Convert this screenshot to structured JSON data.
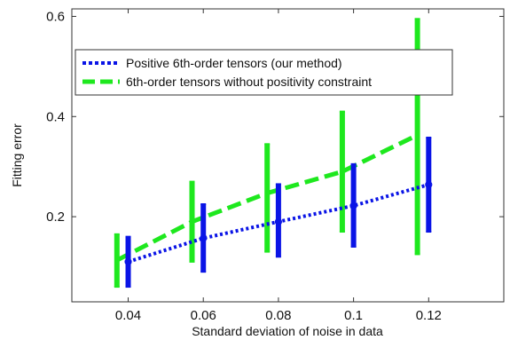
{
  "chart_data": {
    "type": "line",
    "xlabel": "Standard deviation of noise in data",
    "ylabel": "Fitting error",
    "xlim": [
      0.025,
      0.14
    ],
    "ylim": [
      0.03,
      0.615
    ],
    "x_ticks": [
      0.04,
      0.06,
      0.08,
      0.1,
      0.12
    ],
    "x_tick_labels": [
      "0.04",
      "0.06",
      "0.08",
      "0.1",
      "0.12"
    ],
    "y_ticks": [
      0.2,
      0.4,
      0.6
    ],
    "y_tick_labels": [
      "0.2",
      "0.4",
      "0.6"
    ],
    "legend_position": "top-left",
    "grid": false,
    "series": [
      {
        "name": "Positive 6th-order tensors (our method)",
        "color": "#0a14e6",
        "line_style": "dotted",
        "marker": "circle",
        "x": [
          0.04,
          0.06,
          0.08,
          0.1,
          0.12
        ],
        "y": [
          0.11,
          0.157,
          0.19,
          0.222,
          0.264
        ],
        "err_low": [
          0.06,
          0.09,
          0.12,
          0.14,
          0.17
        ],
        "err_high": [
          0.16,
          0.225,
          0.265,
          0.305,
          0.358
        ]
      },
      {
        "name": "6th-order tensors without positivity constraint",
        "color": "#1ee81e",
        "line_style": "dashed",
        "marker": "none",
        "x": [
          0.037,
          0.057,
          0.077,
          0.097,
          0.117
        ],
        "y": [
          0.113,
          0.19,
          0.247,
          0.29,
          0.363
        ],
        "err_low": [
          0.06,
          0.11,
          0.13,
          0.17,
          0.125
        ],
        "err_high": [
          0.165,
          0.27,
          0.345,
          0.41,
          0.595
        ]
      }
    ]
  }
}
